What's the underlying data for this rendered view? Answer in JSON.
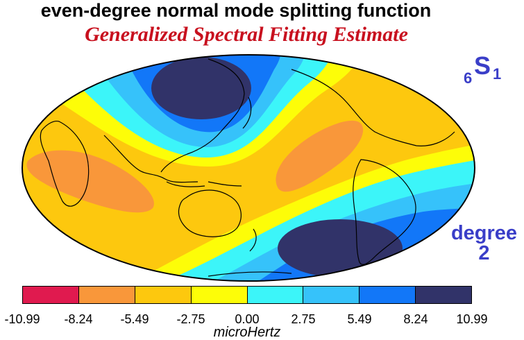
{
  "title": "even-degree normal mode splitting function",
  "subtitle": "Generalized Spectral Fitting Estimate",
  "mode": {
    "prefix": "6",
    "letter": "S",
    "suffix": "1"
  },
  "degree_label": {
    "line1": "degree",
    "line2": "2"
  },
  "colorbar": {
    "unit": "microHertz",
    "ticks": [
      "-10.99",
      "-8.24",
      "-5.49",
      "-2.75",
      "0.00",
      "2.75",
      "5.49",
      "8.24",
      "10.99"
    ],
    "colors": [
      "#e01a4f",
      "#f9973a",
      "#fdc80e",
      "#fdfd08",
      "#3cf5f9",
      "#36c2fa",
      "#1277f8",
      "#313369"
    ]
  },
  "projection": "Hammer-Aitoff",
  "map_center": "Pacific (180° E)",
  "legend_placement": "bottom"
}
